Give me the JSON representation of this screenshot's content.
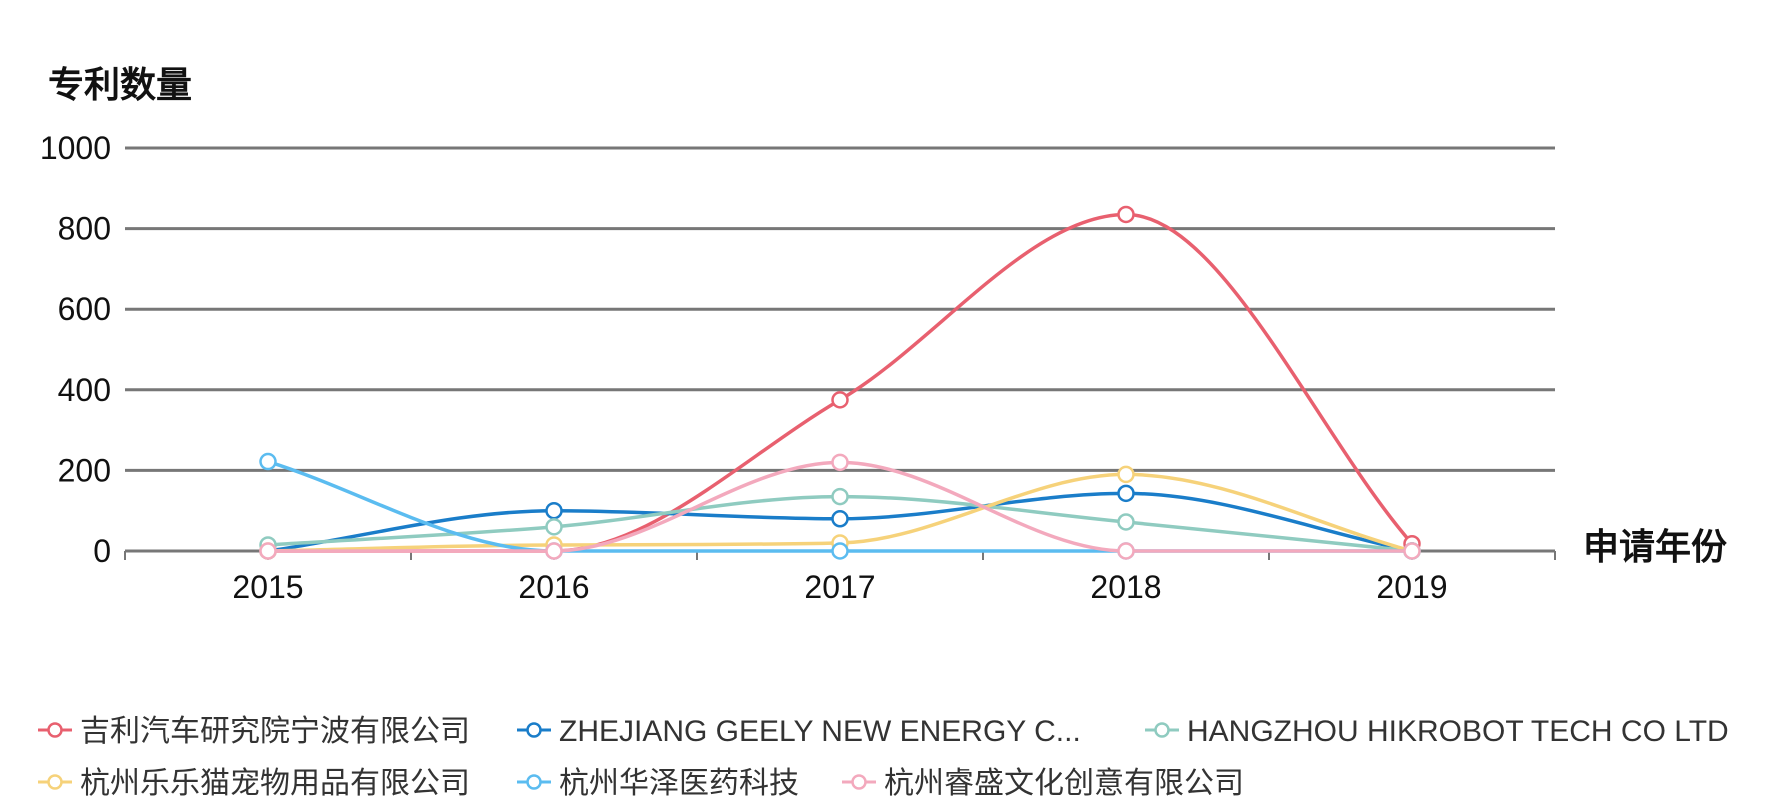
{
  "chart_data": {
    "type": "line",
    "ylabel": "专利数量",
    "xlabel": "申请年份",
    "categories": [
      "2015",
      "2016",
      "2017",
      "2018",
      "2019"
    ],
    "y_ticks": [
      "0",
      "200",
      "400",
      "600",
      "800",
      "1000"
    ],
    "ylim": [
      0,
      1000
    ],
    "grid": true,
    "legend_position": "bottom",
    "series": [
      {
        "name": "吉利汽车研究院宁波有限公司",
        "color": "#e8606f",
        "values": [
          0,
          0,
          375,
          835,
          18
        ]
      },
      {
        "name": "ZHEJIANG GEELY NEW ENERGY C...",
        "color": "#1a7dc9",
        "values": [
          0,
          100,
          80,
          143,
          0
        ]
      },
      {
        "name": "HANGZHOU HIKROBOT TECH CO LTD",
        "color": "#8fcbc0",
        "values": [
          15,
          60,
          135,
          72,
          0
        ]
      },
      {
        "name": "杭州乐乐猫宠物用品有限公司",
        "color": "#f6d27a",
        "values": [
          0,
          15,
          20,
          190,
          0
        ]
      },
      {
        "name": "杭州华泽医药科技",
        "color": "#5bbcf0",
        "values": [
          222,
          0,
          0,
          0,
          0
        ]
      },
      {
        "name": "杭州睿盛文化创意有限公司",
        "color": "#f3a9bd",
        "values": [
          0,
          0,
          220,
          0,
          0
        ]
      }
    ]
  }
}
